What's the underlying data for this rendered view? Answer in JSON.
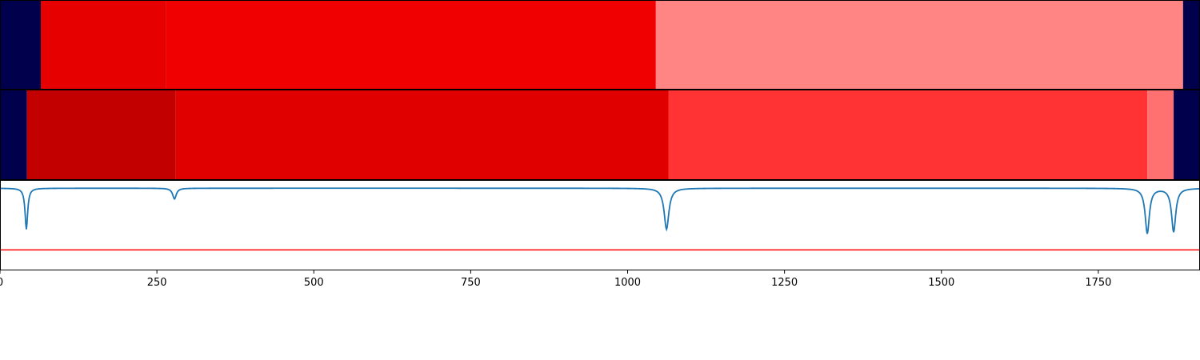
{
  "chart_data": [
    {
      "type": "heatmap",
      "title": "",
      "colormap": "seismic",
      "color_scale": "0 = dark navy, 1 = dark red",
      "xlim": [
        0,
        1912
      ],
      "segments": [
        {
          "x0": 0,
          "x1": 65,
          "value": 0.0
        },
        {
          "x0": 65,
          "x1": 265,
          "value": 0.8
        },
        {
          "x0": 265,
          "x1": 1045,
          "value": 0.78
        },
        {
          "x0": 1045,
          "x1": 1885,
          "value": 0.62
        },
        {
          "x0": 1885,
          "x1": 1912,
          "value": 0.0
        }
      ]
    },
    {
      "type": "heatmap",
      "title": "",
      "colormap": "seismic",
      "color_scale": "0 = dark navy, 1 = dark red",
      "xlim": [
        0,
        1912
      ],
      "segments": [
        {
          "x0": 0,
          "x1": 43,
          "value": 0.0
        },
        {
          "x0": 43,
          "x1": 280,
          "value": 0.87
        },
        {
          "x0": 280,
          "x1": 1065,
          "value": 0.81
        },
        {
          "x0": 1065,
          "x1": 1828,
          "value": 0.7
        },
        {
          "x0": 1828,
          "x1": 1870,
          "value": 0.64
        },
        {
          "x0": 1870,
          "x1": 1912,
          "value": 0.0
        }
      ]
    },
    {
      "type": "line",
      "title": "",
      "xlabel": "",
      "ylabel": "",
      "xlim": [
        0,
        1912
      ],
      "ylim": [
        -1.0,
        0.1
      ],
      "x_ticks": [
        0,
        250,
        500,
        750,
        1000,
        1250,
        1500,
        1750
      ],
      "series": [
        {
          "color": "#1f77b4",
          "baseline": 0.0,
          "dips": [
            {
              "x": 42,
              "depth": -0.5,
              "width": 2.5
            },
            {
              "x": 278,
              "depth": -0.13,
              "width": 3.5
            },
            {
              "x": 1062,
              "depth": -0.5,
              "width": 4.5
            },
            {
              "x": 1828,
              "depth": -0.55,
              "width": 4.0
            },
            {
              "x": 1870,
              "depth": -0.53,
              "width": 4.0
            }
          ]
        }
      ],
      "hlines": [
        {
          "y": -0.75,
          "color": "#ff0000"
        }
      ]
    }
  ]
}
